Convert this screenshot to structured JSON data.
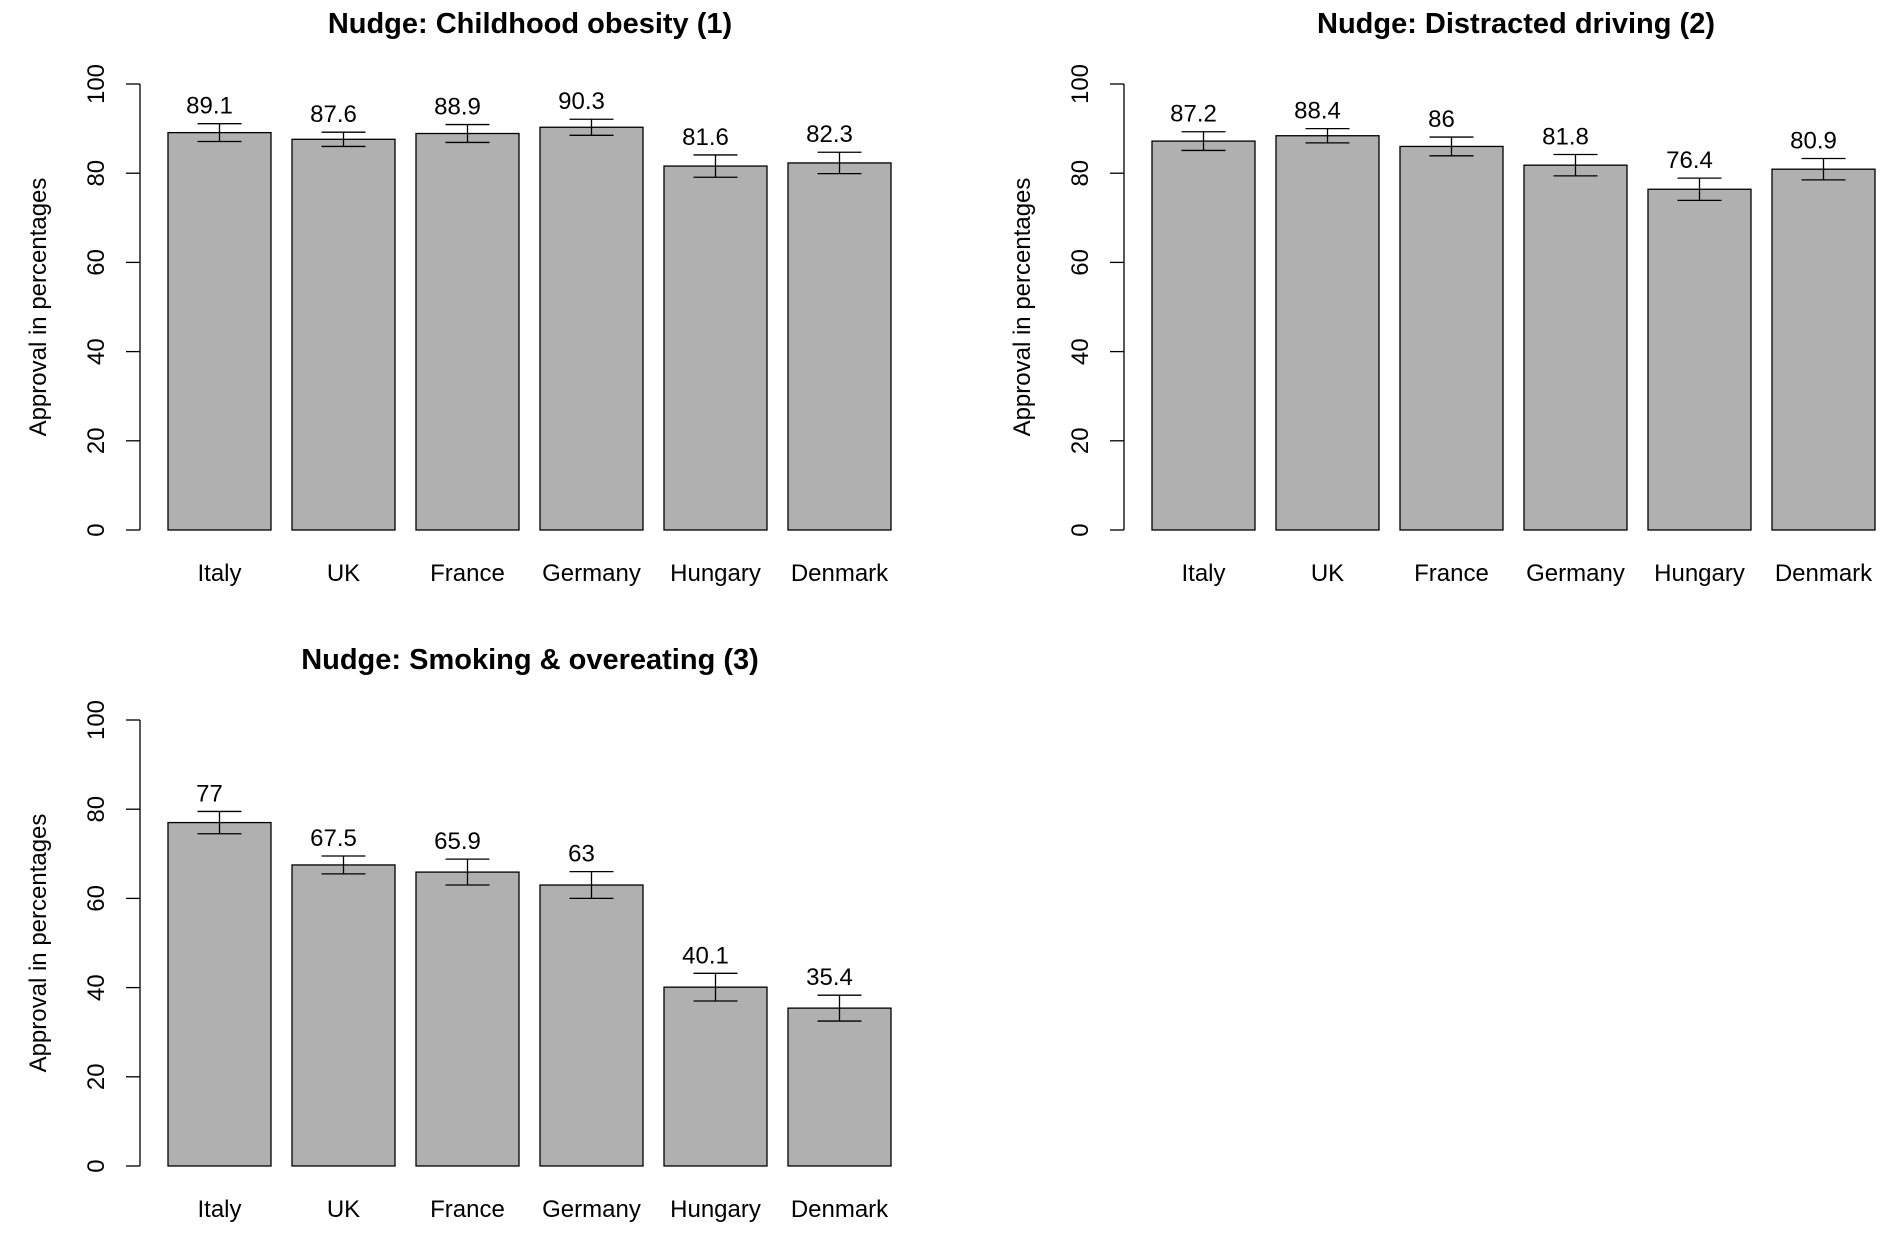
{
  "colors": {
    "bar": "#b0b0b0",
    "stroke": "#000000",
    "background": "#ffffff"
  },
  "chart_data": [
    {
      "type": "bar",
      "title": "Nudge: Childhood obesity (1)",
      "ylabel": "Approval in percentages",
      "xlabel": "",
      "ylim": [
        0,
        100
      ],
      "yticks": [
        0,
        20,
        40,
        60,
        80,
        100
      ],
      "grid": false,
      "error_bars": true,
      "categories": [
        "Italy",
        "UK",
        "France",
        "Germany",
        "Hungary",
        "Denmark"
      ],
      "values": [
        89.1,
        87.6,
        88.9,
        90.3,
        81.6,
        82.3
      ],
      "labels": [
        "89.1",
        "87.6",
        "88.9",
        "90.3",
        "81.6",
        "82.3"
      ],
      "ci_low": [
        87.1,
        86.0,
        86.9,
        88.5,
        79.1,
        79.9
      ],
      "ci_high": [
        91.1,
        89.2,
        90.9,
        92.1,
        84.1,
        84.7
      ]
    },
    {
      "type": "bar",
      "title": "Nudge: Distracted driving (2)",
      "ylabel": "Approval in percentages",
      "xlabel": "",
      "ylim": [
        0,
        100
      ],
      "yticks": [
        0,
        20,
        40,
        60,
        80,
        100
      ],
      "grid": false,
      "error_bars": true,
      "categories": [
        "Italy",
        "UK",
        "France",
        "Germany",
        "Hungary",
        "Denmark"
      ],
      "values": [
        87.2,
        88.4,
        86,
        81.8,
        76.4,
        80.9
      ],
      "labels": [
        "87.2",
        "88.4",
        "86",
        "81.8",
        "76.4",
        "80.9"
      ],
      "ci_low": [
        85.1,
        86.8,
        83.9,
        79.4,
        73.9,
        78.5
      ],
      "ci_high": [
        89.3,
        90.0,
        88.1,
        84.2,
        78.9,
        83.3
      ]
    },
    {
      "type": "bar",
      "title": "Nudge: Smoking & overeating (3)",
      "ylabel": "Approval in percentages",
      "xlabel": "",
      "ylim": [
        0,
        100
      ],
      "yticks": [
        0,
        20,
        40,
        60,
        80,
        100
      ],
      "grid": false,
      "error_bars": true,
      "categories": [
        "Italy",
        "UK",
        "France",
        "Germany",
        "Hungary",
        "Denmark"
      ],
      "values": [
        77,
        67.5,
        65.9,
        63,
        40.1,
        35.4
      ],
      "labels": [
        "77",
        "67.5",
        "65.9",
        "63",
        "40.1",
        "35.4"
      ],
      "ci_low": [
        74.5,
        65.5,
        63.0,
        60.0,
        37.0,
        32.5
      ],
      "ci_high": [
        79.5,
        69.5,
        68.8,
        66.0,
        43.2,
        38.3
      ]
    }
  ]
}
